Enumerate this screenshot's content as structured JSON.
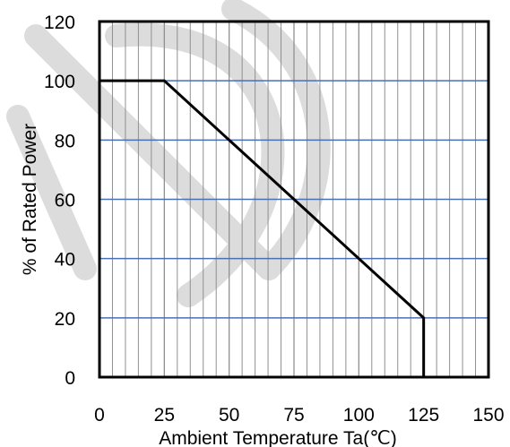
{
  "chart_data": {
    "type": "line",
    "title": "",
    "xlabel": "Ambient  Temperature  Ta(℃)",
    "ylabel": "% of Rated Power",
    "xlim": [
      0,
      150
    ],
    "ylim": [
      0,
      120
    ],
    "x_ticks": [
      0,
      25,
      50,
      75,
      100,
      125,
      150
    ],
    "y_ticks": [
      0,
      20,
      40,
      60,
      80,
      100,
      120
    ],
    "x_minor_grid_step": 5,
    "grid": true,
    "legend": "none",
    "series": [
      {
        "x": [
          0,
          25,
          125,
          125
        ],
        "y": [
          100,
          100,
          20,
          0
        ]
      }
    ],
    "colors": {
      "major_grid": "#4a6fb5",
      "minor_grid": "#909090",
      "line": "#000000",
      "frame": "#000000",
      "watermark": "#dcdcdc"
    }
  }
}
